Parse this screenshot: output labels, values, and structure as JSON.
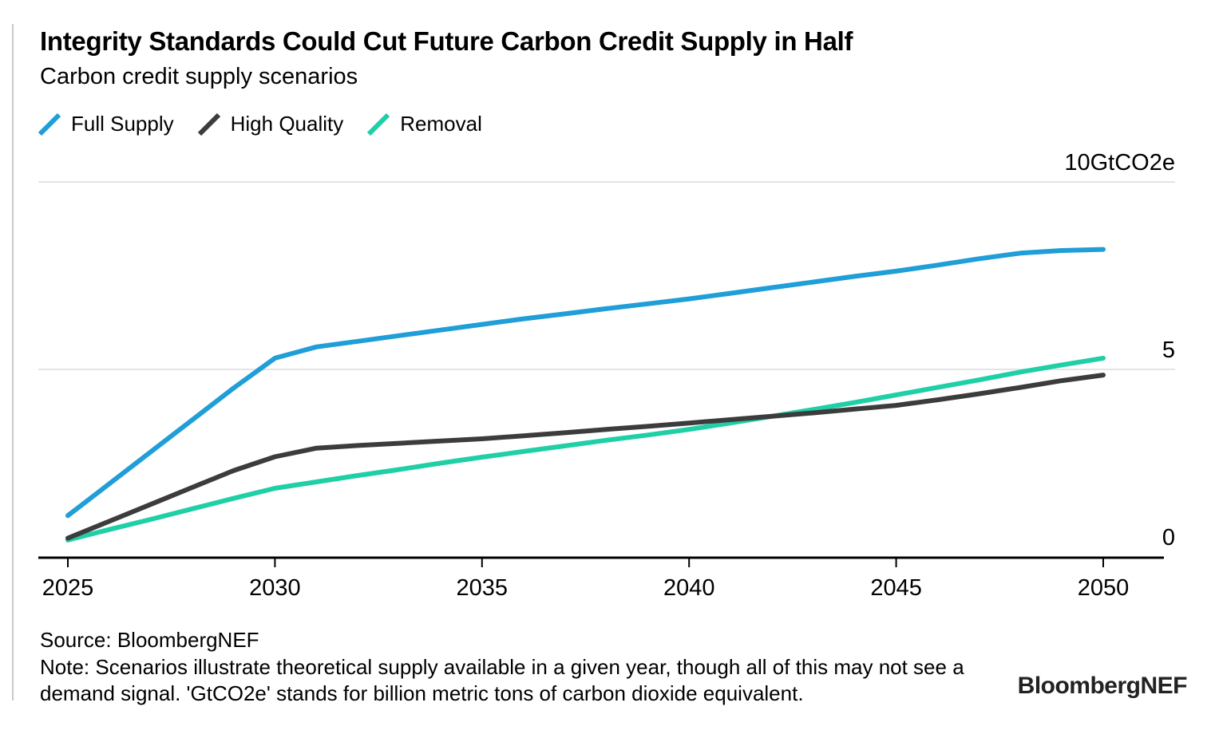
{
  "header": {
    "title": "Integrity Standards Could Cut Future Carbon Credit Supply in Half",
    "subtitle": "Carbon credit supply scenarios"
  },
  "chart_data": {
    "type": "line",
    "title": "Integrity Standards Could Cut Future Carbon Credit Supply in Half",
    "subtitle": "Carbon credit supply scenarios",
    "unit": "GtCO2e",
    "x": [
      2025,
      2026,
      2027,
      2028,
      2029,
      2030,
      2031,
      2032,
      2033,
      2034,
      2035,
      2036,
      2037,
      2038,
      2039,
      2040,
      2041,
      2042,
      2043,
      2044,
      2045,
      2046,
      2047,
      2048,
      2049,
      2050
    ],
    "x_ticks": [
      2025,
      2030,
      2035,
      2040,
      2045,
      2050
    ],
    "y_ticks": [
      {
        "value": 0,
        "label": "0"
      },
      {
        "value": 5,
        "label": "5"
      },
      {
        "value": 10,
        "label": "10GtCO2e"
      }
    ],
    "xlim": [
      2025,
      2050
    ],
    "ylim": [
      0,
      10.5
    ],
    "grid": "horizontal",
    "legend_position": "top-left",
    "series": [
      {
        "name": "Full Supply",
        "color": "#1f9ed8",
        "values": [
          1.1,
          1.95,
          2.8,
          3.65,
          4.5,
          5.3,
          5.6,
          5.75,
          5.9,
          6.05,
          6.2,
          6.35,
          6.48,
          6.62,
          6.75,
          6.88,
          7.03,
          7.18,
          7.33,
          7.48,
          7.62,
          7.78,
          7.95,
          8.1,
          8.17,
          8.2
        ]
      },
      {
        "name": "High Quality",
        "color": "#3c3c3c",
        "values": [
          0.5,
          0.95,
          1.4,
          1.85,
          2.3,
          2.67,
          2.9,
          2.97,
          3.03,
          3.09,
          3.15,
          3.23,
          3.31,
          3.4,
          3.48,
          3.57,
          3.66,
          3.75,
          3.84,
          3.94,
          4.04,
          4.19,
          4.35,
          4.52,
          4.7,
          4.85
        ]
      },
      {
        "name": "Removal",
        "color": "#1fcfa6",
        "values": [
          0.45,
          0.73,
          1.0,
          1.28,
          1.56,
          1.83,
          2.0,
          2.17,
          2.33,
          2.5,
          2.66,
          2.81,
          2.96,
          3.11,
          3.25,
          3.4,
          3.57,
          3.75,
          3.93,
          4.12,
          4.32,
          4.52,
          4.72,
          4.93,
          5.12,
          5.3
        ]
      }
    ]
  },
  "style": {
    "grid_color": "#e4e4e4",
    "axis_color": "#000000",
    "label_color": "#000000",
    "line_width": 6
  },
  "footer": {
    "source": "Source: BloombergNEF",
    "note": "Note: Scenarios illustrate theoretical supply available in a given year, though all of this may not see a demand signal. 'GtCO2e' stands for billion metric tons of carbon dioxide equivalent.",
    "logo": "BloombergNEF"
  }
}
